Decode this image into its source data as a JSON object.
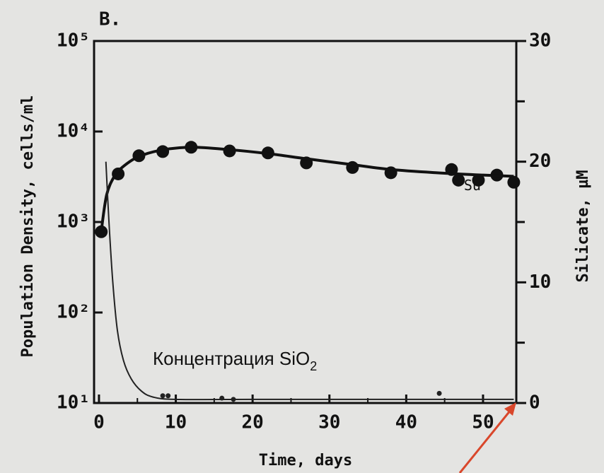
{
  "chart_data": {
    "type": "scatter",
    "panel_label": "B.",
    "xlabel": "Time, days",
    "ylabel": "Population Density, cells/ml",
    "y2label": "Silicate, µM",
    "xlim": [
      -0.64,
      54.33
    ],
    "xticks": [
      0,
      10,
      20,
      30,
      40,
      50
    ],
    "xminor_ticks": [
      5,
      15,
      25,
      35,
      45
    ],
    "ylim": [
      10,
      100000
    ],
    "yscale": "log",
    "yticks": [
      {
        "value": 10,
        "label": "10¹"
      },
      {
        "value": 100,
        "label": "10²"
      },
      {
        "value": 1000,
        "label": "10³"
      },
      {
        "value": 10000,
        "label": "10⁴"
      },
      {
        "value": 100000,
        "label": "10⁵"
      }
    ],
    "y2lim": [
      0,
      30
    ],
    "y2ticks": [
      0,
      10,
      20,
      30
    ],
    "y2minor_ticks": [
      5,
      15,
      25
    ],
    "series": [
      {
        "kind": "points",
        "color": "#111111",
        "x": [
          0.3,
          2.5,
          5.2,
          8.3,
          12,
          17,
          22,
          27,
          33,
          38,
          45.9,
          46.8,
          49.4,
          51.8,
          54
        ],
        "values": [
          780,
          3400,
          5400,
          6000,
          6700,
          6100,
          5800,
          4500,
          4000,
          3500,
          3800,
          2900,
          2900,
          3300,
          2750
        ]
      },
      {
        "kind": "curve",
        "color": "#111111",
        "x": [
          0.3,
          1,
          2,
          3,
          5,
          8,
          12,
          17,
          22,
          27,
          33,
          38,
          44,
          50,
          54
        ],
        "values": [
          800,
          2000,
          3200,
          4000,
          5200,
          6200,
          6700,
          6300,
          5700,
          5000,
          4300,
          3800,
          3500,
          3300,
          3200
        ]
      },
      {
        "kind": "curve",
        "axis": "y2",
        "color": "#222222",
        "x": [
          0.9,
          1.3,
          1.8,
          2.4,
          3.2,
          4.2,
          5.5,
          7,
          10,
          20,
          54
        ],
        "values": [
          20,
          15,
          10,
          6,
          3.5,
          2,
          1,
          0.5,
          0.3,
          0.3,
          0.3
        ]
      },
      {
        "kind": "points",
        "axis": "y2",
        "color": "#222222",
        "x": [
          8.3,
          9,
          16,
          17.5,
          44.3
        ],
        "values": [
          0.6,
          0.6,
          0.4,
          0.3,
          0.8
        ]
      }
    ],
    "annotations": [
      {
        "text": "Su",
        "x": 47.5,
        "y": 2500
      },
      {
        "text": "Концентрация SiO",
        "subscript": "2",
        "x": 7,
        "y": 30
      }
    ]
  }
}
